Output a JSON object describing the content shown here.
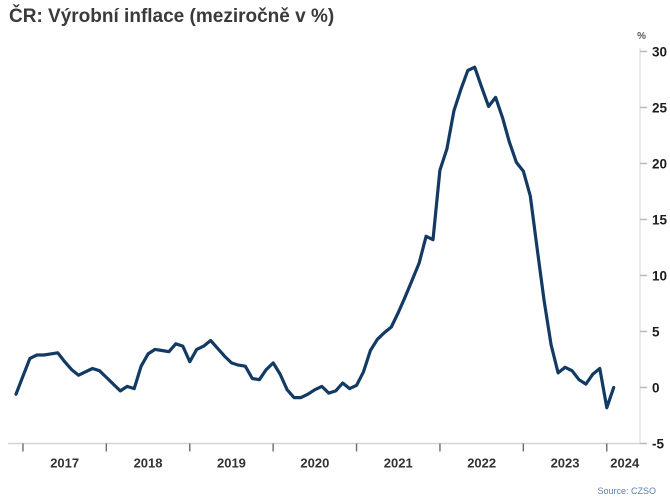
{
  "title": "ČR: Výrobní inflace (meziročně v %)",
  "source_label": "Source: CZSO",
  "chart_data": {
    "type": "line",
    "title": "ČR: Výrobní inflace (meziročně v %)",
    "subtitle": "",
    "unit_label": "%",
    "xlabel": "",
    "ylabel": "%",
    "ylim": [
      -5,
      30
    ],
    "y_ticks": [
      30,
      25,
      20,
      15,
      10,
      5,
      0,
      -5
    ],
    "x_tick_years": [
      "2017",
      "2018",
      "2019",
      "2020",
      "2021",
      "2022",
      "2023",
      "2024"
    ],
    "grid": false,
    "legend": "none",
    "line_color": "#123a63",
    "axis_line_color": "#d6d6d6",
    "y_tick_color": "#b5b5b5",
    "x_tick_color": "#6b6b6b",
    "x_start_month": "2016-12",
    "x_end_month": "2024-02",
    "frequency": "monthly",
    "series": [
      {
        "name": "Výrobní inflace (meziročně v %)",
        "values": [
          -0.6,
          1.0,
          2.6,
          2.9,
          2.9,
          3.0,
          3.1,
          2.3,
          1.6,
          1.1,
          1.4,
          1.7,
          1.5,
          0.9,
          0.3,
          -0.3,
          0.1,
          -0.1,
          1.9,
          3.0,
          3.4,
          3.3,
          3.2,
          3.9,
          3.7,
          2.3,
          3.4,
          3.7,
          4.2,
          3.5,
          2.8,
          2.2,
          2.0,
          1.9,
          0.8,
          0.7,
          1.6,
          2.2,
          1.2,
          -0.2,
          -0.9,
          -0.9,
          -0.6,
          -0.2,
          0.1,
          -0.5,
          -0.3,
          0.4,
          -0.1,
          0.2,
          1.4,
          3.3,
          4.3,
          4.9,
          5.4,
          6.7,
          8.1,
          9.6,
          11.1,
          13.5,
          13.2,
          19.4,
          21.3,
          24.7,
          26.6,
          28.3,
          28.6,
          26.8,
          25.1,
          25.9,
          24.1,
          21.9,
          20.1,
          19.3,
          17.1,
          12.3,
          7.7,
          3.8,
          1.3,
          1.8,
          1.5,
          0.7,
          0.3,
          1.2,
          1.7,
          -1.8,
          0.0
        ]
      }
    ]
  }
}
